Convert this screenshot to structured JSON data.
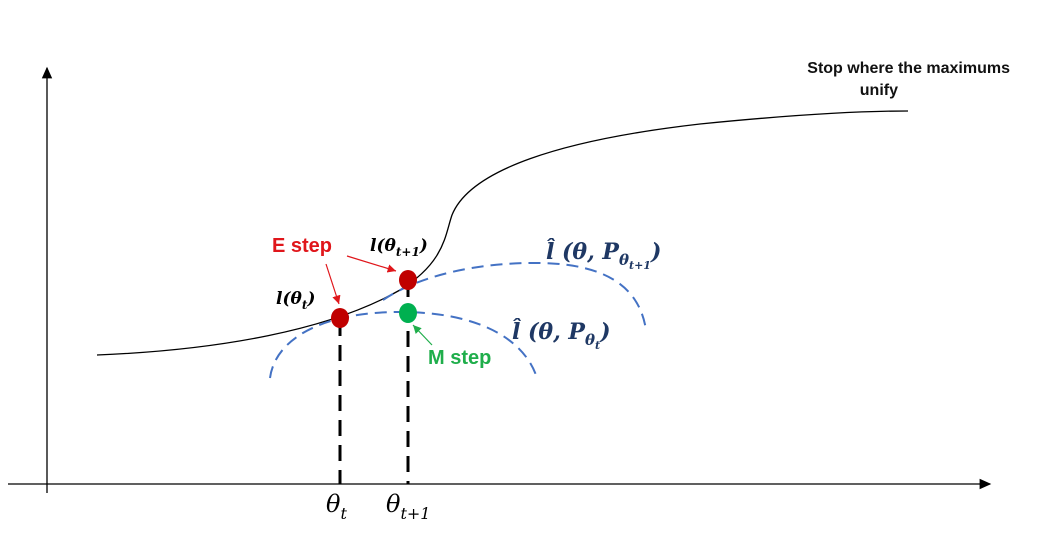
{
  "note": {
    "line1": "Stop where the maximums",
    "line2": "unify"
  },
  "labels": {
    "e_step": "E step",
    "m_step": "M step",
    "l_theta_t": "l(θ",
    "l_theta_t_sub": "t",
    "l_theta_t1": "l(θ",
    "l_theta_t1_sub": "t+1",
    "lhat_1_prefix": "l̂ (θ, P",
    "lhat_1_sub_theta": "θ",
    "lhat_1_sub_sub": "t+1",
    "lhat_2_prefix": "l̂ (θ, P",
    "lhat_2_sub_theta": "θ",
    "lhat_2_sub_sub": "t",
    "close_paren": ")"
  },
  "axis": {
    "theta_t": "θ",
    "theta_t_sub": "t",
    "theta_t1": "θ",
    "theta_t1_sub": "t+1"
  },
  "colors": {
    "e_step": "#e0161b",
    "m_step": "#1fae4b",
    "red_point": "#c00000",
    "green_point": "#00b050",
    "dashed_curve": "#4472c4",
    "label_navy": "#1f3864"
  }
}
